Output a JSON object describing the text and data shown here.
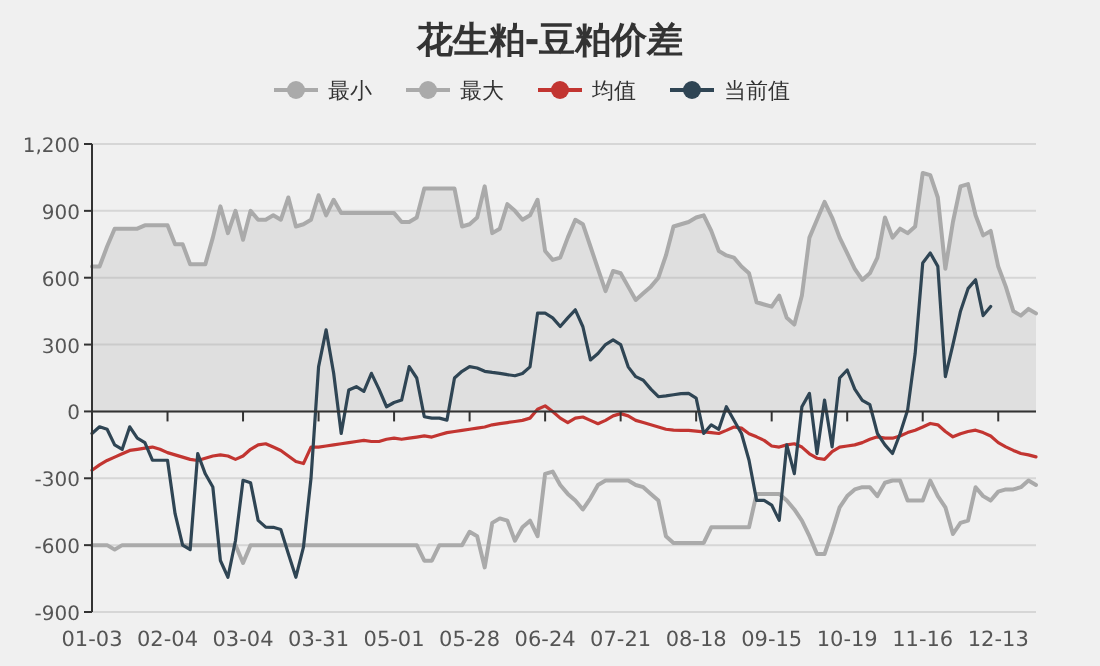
{
  "chart_data": {
    "type": "line",
    "title": "花生粕-豆粕价差",
    "categories": [
      "01-03",
      null,
      null,
      null,
      null,
      null,
      null,
      null,
      null,
      null,
      "02-04",
      null,
      null,
      null,
      null,
      null,
      null,
      null,
      null,
      null,
      "03-04",
      null,
      null,
      null,
      null,
      null,
      null,
      null,
      null,
      null,
      "03-31",
      null,
      null,
      null,
      null,
      null,
      null,
      null,
      null,
      null,
      "05-01",
      null,
      null,
      null,
      null,
      null,
      null,
      null,
      null,
      null,
      "05-28",
      null,
      null,
      null,
      null,
      null,
      null,
      null,
      null,
      null,
      "06-24",
      null,
      null,
      null,
      null,
      null,
      null,
      null,
      null,
      null,
      "07-21",
      null,
      null,
      null,
      null,
      null,
      null,
      null,
      null,
      null,
      "08-18",
      null,
      null,
      null,
      null,
      null,
      null,
      null,
      null,
      null,
      "09-15",
      null,
      null,
      null,
      null,
      null,
      null,
      null,
      null,
      null,
      "10-19",
      null,
      null,
      null,
      null,
      null,
      null,
      null,
      null,
      null,
      "11-16",
      null,
      null,
      null,
      null,
      null,
      null,
      null,
      null,
      null,
      "12-13",
      null,
      null,
      null,
      null,
      null
    ],
    "series": [
      {
        "name": "最小",
        "color": "#aaaaaa",
        "values": [
          -600,
          -600,
          -600,
          -620,
          -600,
          -600,
          -600,
          -600,
          -600,
          -600,
          -600,
          -600,
          -600,
          -600,
          -600,
          -600,
          -600,
          -600,
          -600,
          -600,
          -680,
          -600,
          -600,
          -600,
          -600,
          -600,
          -600,
          -600,
          -600,
          -600,
          -600,
          -600,
          -600,
          -600,
          -600,
          -600,
          -600,
          -600,
          -600,
          -600,
          -600,
          -600,
          -600,
          -600,
          -670,
          -670,
          -600,
          -600,
          -600,
          -600,
          -540,
          -560,
          -700,
          -500,
          -480,
          -490,
          -580,
          -520,
          -490,
          -560,
          -280,
          -270,
          -330,
          -370,
          -400,
          -440,
          -390,
          -330,
          -310,
          -310,
          -310,
          -310,
          -330,
          -340,
          -370,
          -400,
          -560,
          -590,
          -590,
          -590,
          -590,
          -590,
          -520,
          -520,
          -520,
          -520,
          -520,
          -520,
          -370,
          -370,
          -370,
          -370,
          -400,
          -440,
          -490,
          -560,
          -640,
          -640,
          -540,
          -430,
          -380,
          -350,
          -340,
          -340,
          -380,
          -320,
          -310,
          -310,
          -400,
          -400,
          -400,
          -310,
          -380,
          -430,
          -550,
          -500,
          -490,
          -340,
          -380,
          -400,
          -360,
          -350,
          -350,
          -340,
          -310,
          -330
        ]
      },
      {
        "name": "最大",
        "type": "area",
        "color": "#aaaaaa",
        "values": [
          650,
          650,
          740,
          820,
          820,
          820,
          820,
          835,
          835,
          835,
          835,
          750,
          750,
          660,
          660,
          660,
          780,
          920,
          800,
          900,
          770,
          900,
          860,
          860,
          880,
          860,
          960,
          830,
          840,
          860,
          970,
          880,
          950,
          890,
          890,
          890,
          890,
          890,
          890,
          890,
          890,
          850,
          850,
          870,
          1000,
          1000,
          1000,
          1000,
          1000,
          830,
          840,
          870,
          1010,
          800,
          820,
          930,
          900,
          860,
          880,
          950,
          720,
          680,
          690,
          780,
          860,
          840,
          740,
          640,
          540,
          630,
          620,
          560,
          500,
          530,
          560,
          600,
          700,
          830,
          840,
          850,
          870,
          880,
          810,
          720,
          700,
          690,
          650,
          620,
          490,
          480,
          470,
          520,
          420,
          390,
          520,
          780,
          860,
          940,
          870,
          780,
          710,
          640,
          590,
          620,
          690,
          870,
          780,
          820,
          800,
          830,
          1070,
          1060,
          960,
          640,
          850,
          1010,
          1020,
          880,
          790,
          810,
          650,
          560,
          450,
          430,
          460,
          440
        ]
      },
      {
        "name": "均值",
        "color": "#c23531",
        "values": [
          -264,
          -240,
          -220,
          -205,
          -190,
          -175,
          -170,
          -165,
          -160,
          -170,
          -185,
          -195,
          -205,
          -215,
          -220,
          -210,
          -200,
          -195,
          -200,
          -215,
          -200,
          -170,
          -150,
          -145,
          -160,
          -175,
          -200,
          -225,
          -234,
          -160,
          -160,
          -155,
          -150,
          -145,
          -140,
          -135,
          -130,
          -135,
          -135,
          -125,
          -120,
          -125,
          -120,
          -115,
          -110,
          -115,
          -105,
          -95,
          -90,
          -85,
          -80,
          -75,
          -70,
          -60,
          -55,
          -50,
          -45,
          -40,
          -30,
          10,
          25,
          0,
          -30,
          -50,
          -30,
          -25,
          -40,
          -55,
          -40,
          -20,
          -10,
          -20,
          -40,
          -50,
          -60,
          -70,
          -80,
          -84,
          -85,
          -85,
          -88,
          -92,
          -95,
          -99,
          -85,
          -70,
          -75,
          -100,
          -114,
          -130,
          -155,
          -160,
          -150,
          -145,
          -160,
          -190,
          -210,
          -215,
          -180,
          -160,
          -155,
          -150,
          -140,
          -125,
          -114,
          -120,
          -120,
          -110,
          -95,
          -84,
          -70,
          -54,
          -60,
          -90,
          -114,
          -100,
          -90,
          -84,
          -95,
          -110,
          -140,
          -159,
          -175,
          -189,
          -195,
          -204
        ]
      },
      {
        "name": "当前值",
        "color": "#2f4554",
        "values": [
          -99,
          -69,
          -80,
          -150,
          -170,
          -69,
          -120,
          -140,
          -219,
          -219,
          -219,
          -459,
          -600,
          -620,
          -189,
          -280,
          -339,
          -669,
          -744,
          -579,
          -309,
          -320,
          -489,
          -519,
          -520,
          -530,
          -639,
          -744,
          -609,
          -300,
          200,
          366,
          171,
          -99,
          96,
          111,
          90,
          171,
          100,
          21,
          40,
          51,
          201,
          150,
          -24,
          -30,
          -30,
          -39,
          150,
          180,
          201,
          195,
          180,
          175,
          171,
          165,
          160,
          170,
          200,
          441,
          441,
          420,
          381,
          420,
          456,
          380,
          231,
          260,
          300,
          321,
          300,
          200,
          156,
          140,
          100,
          66,
          70,
          75,
          80,
          81,
          60,
          -99,
          -60,
          -80,
          21,
          -40,
          -99,
          -219,
          -399,
          -399,
          -420,
          -489,
          -150,
          -279,
          21,
          81,
          -189,
          51,
          -159,
          150,
          186,
          100,
          50,
          30,
          -99,
          -150,
          -189,
          -100,
          6,
          261,
          666,
          711,
          651,
          156,
          300,
          450,
          551,
          591,
          430,
          471,
          null,
          null,
          null,
          null,
          null,
          null
        ]
      }
    ],
    "ylim": [
      -900,
      1200
    ],
    "yticks": [
      -900,
      -600,
      -300,
      0,
      300,
      600,
      900,
      {
        "value": 1200,
        "label": "1,200"
      }
    ],
    "grid": "y",
    "legend": "top",
    "line_style": "solid"
  }
}
